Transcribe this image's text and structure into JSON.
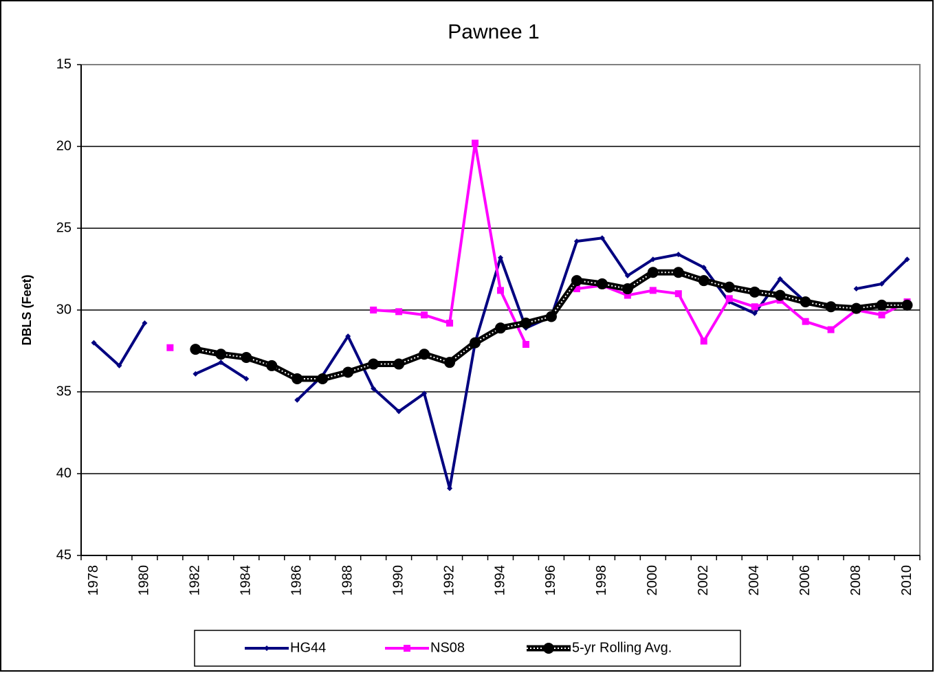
{
  "chart_data": {
    "type": "line",
    "title": "Pawnee 1",
    "y_label": "DBLS (Feet)",
    "categories": [
      "1978",
      null,
      "1980",
      null,
      "1982",
      null,
      "1984",
      null,
      "1986",
      null,
      "1988",
      null,
      "1990",
      null,
      "1992",
      null,
      "1994",
      null,
      "1996",
      null,
      "1998",
      null,
      "2000",
      null,
      "2002",
      null,
      "2004",
      null,
      "2006",
      null,
      "2008",
      null,
      "2010"
    ],
    "series": [
      {
        "name": "HG44",
        "color": "#000080",
        "marker": "diamond",
        "values": [
          32.0,
          33.4,
          30.8,
          null,
          33.9,
          33.2,
          34.2,
          null,
          35.5,
          34.0,
          31.6,
          34.8,
          36.2,
          35.1,
          40.9,
          32.0,
          26.8,
          31.1,
          30.4,
          25.8,
          25.6,
          27.9,
          26.9,
          26.6,
          27.4,
          29.5,
          30.2,
          28.1,
          29.5,
          null,
          28.7,
          28.4,
          26.9
        ]
      },
      {
        "name": "NS08",
        "color": "#ff00ff",
        "marker": "square",
        "values": [
          null,
          null,
          null,
          32.3,
          null,
          null,
          null,
          null,
          null,
          null,
          null,
          30.0,
          30.1,
          30.3,
          30.8,
          19.8,
          28.8,
          32.1,
          null,
          28.7,
          28.5,
          29.1,
          28.8,
          29.0,
          31.9,
          29.3,
          29.8,
          29.4,
          30.7,
          31.2,
          30.0,
          30.3,
          29.5
        ]
      },
      {
        "name": "5-yr Rolling Avg.",
        "color": "#000000",
        "marker": "circle",
        "values": [
          null,
          null,
          null,
          null,
          32.4,
          32.7,
          32.9,
          33.4,
          34.2,
          34.2,
          33.8,
          33.3,
          33.3,
          32.7,
          33.2,
          32.0,
          31.1,
          30.8,
          30.4,
          28.2,
          28.4,
          28.7,
          27.7,
          27.7,
          28.2,
          28.6,
          28.9,
          29.1,
          29.5,
          29.8,
          29.9,
          29.7,
          29.7
        ]
      }
    ],
    "ylim": [
      15,
      45
    ],
    "y_reversed": true,
    "yticks": [
      15,
      20,
      25,
      30,
      35,
      40,
      45
    ],
    "grid": true,
    "legend": "bottom"
  }
}
